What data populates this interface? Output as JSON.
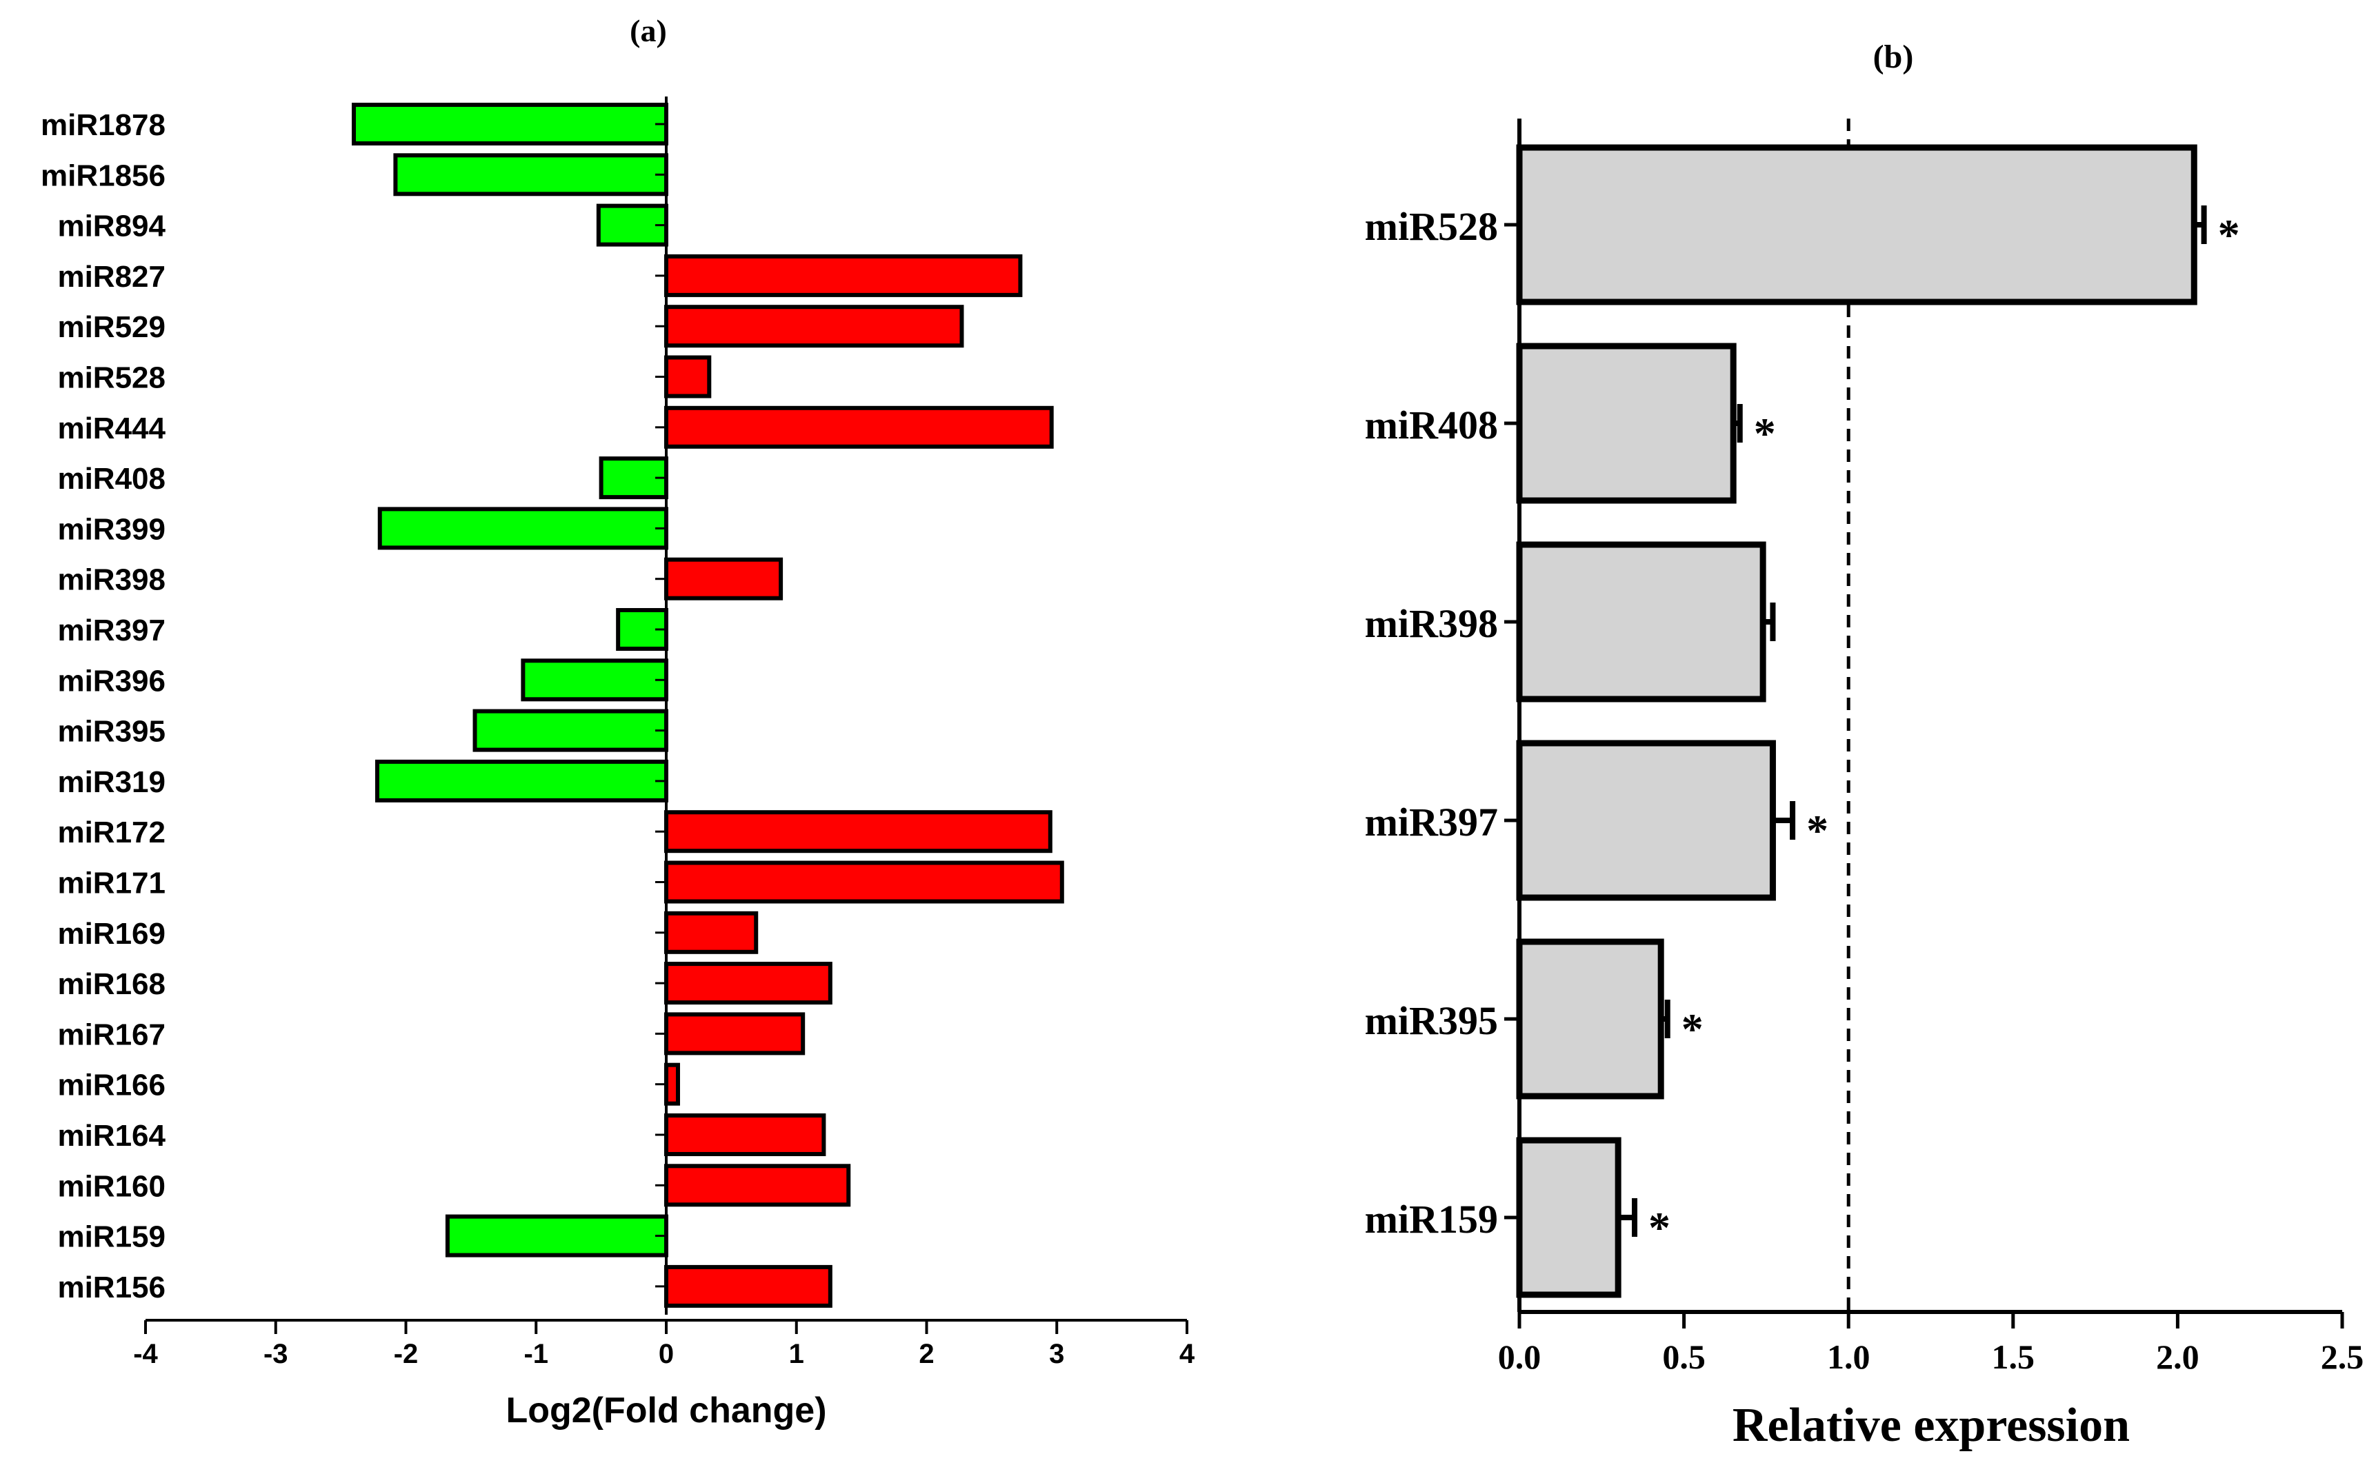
{
  "chart_data": [
    {
      "type": "bar",
      "orientation": "horizontal",
      "panel_label": "(a)",
      "title": "",
      "xlabel": "Log2(Fold change)",
      "ylabel": "",
      "xlim": [
        -4,
        4
      ],
      "xticks": [
        "-4",
        "-3",
        "-2",
        "-1",
        "0",
        "1",
        "2",
        "3",
        "4"
      ],
      "categories": [
        "miR1878",
        "miR1856",
        "miR894",
        "miR827",
        "miR529",
        "miR528",
        "miR444",
        "miR408",
        "miR399",
        "miR398",
        "miR397",
        "miR396",
        "miR395",
        "miR319",
        "miR172",
        "miR171",
        "miR169",
        "miR168",
        "miR167",
        "miR166",
        "miR164",
        "miR160",
        "miR159",
        "miR156"
      ],
      "values": [
        -2.4,
        -2.08,
        -0.52,
        2.72,
        2.27,
        0.33,
        2.96,
        -0.5,
        -2.2,
        0.88,
        -0.37,
        -1.1,
        -1.47,
        -2.22,
        2.95,
        3.04,
        0.69,
        1.26,
        1.05,
        0.09,
        1.21,
        1.4,
        -1.68,
        1.26
      ],
      "colors": {
        "positive": "#ff0000",
        "negative": "#00ff00",
        "outline": "#000000"
      }
    },
    {
      "type": "bar",
      "orientation": "horizontal",
      "panel_label": "(b)",
      "title": "",
      "xlabel": "Relative expression",
      "ylabel": "",
      "xlim": [
        0,
        2.5
      ],
      "xticks": [
        "0.0",
        "0.5",
        "1.0",
        "1.5",
        "2.0",
        "2.5"
      ],
      "reference_line": 1.0,
      "categories": [
        "miR528",
        "miR408",
        "miR398",
        "miR397",
        "miR395",
        "miR159"
      ],
      "values": [
        2.05,
        0.65,
        0.74,
        0.77,
        0.43,
        0.3
      ],
      "errors": [
        0.03,
        0.02,
        0.03,
        0.06,
        0.02,
        0.05
      ],
      "significant": [
        true,
        true,
        false,
        true,
        true,
        true
      ],
      "significance_marker": "*",
      "colors": {
        "bar": "#d3d3d3",
        "outline": "#000000"
      }
    }
  ]
}
